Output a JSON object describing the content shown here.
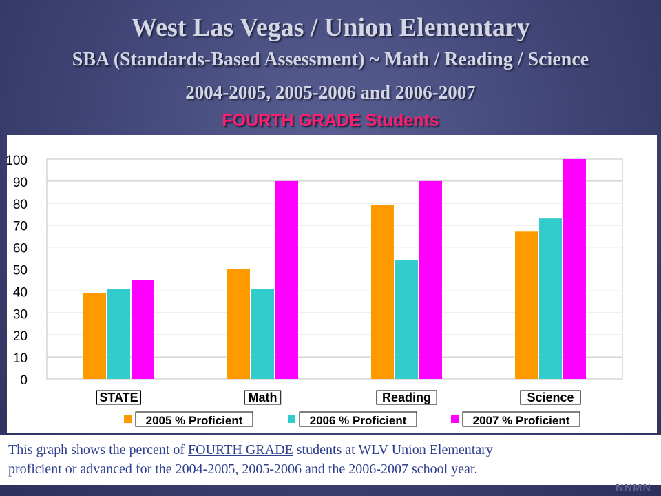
{
  "slide": {
    "title": "West Las Vegas / Union Elementary",
    "subtitle": "SBA (Standards-Based Assessment) ~ Math / Reading / Science",
    "years": "2004-2005, 2005-2006 and 2006-2007",
    "grade_line": "FOURTH GRADE  Students"
  },
  "caption": {
    "part1": "This graph shows the percent of ",
    "underlined": "FOURTH GRADE",
    "part2": "  students at WLV Union Elementary",
    "line2": "proficient or advanced for the 2004-2005, 2005-2006 and the 2006-2007 school year."
  },
  "watermark": "NNMN",
  "chart_data": {
    "type": "bar",
    "categories": [
      "STATE",
      "Math",
      "Reading",
      "Science"
    ],
    "series": [
      {
        "name": "2005 % Proficient",
        "color": "#ff9900",
        "values": [
          39,
          50,
          79,
          67
        ]
      },
      {
        "name": "2006  % Proficient",
        "color": "#33cccc",
        "values": [
          41,
          41,
          54,
          73
        ]
      },
      {
        "name": "2007 % Proficient",
        "color": "#ff00ff",
        "values": [
          45,
          90,
          90,
          100
        ]
      }
    ],
    "ylim": [
      0,
      100
    ],
    "yticks": [
      "0",
      "10",
      "20",
      "30",
      "40",
      "50",
      "60",
      "70",
      "80",
      "90",
      "100"
    ],
    "grid": true,
    "legend_position": "bottom"
  }
}
